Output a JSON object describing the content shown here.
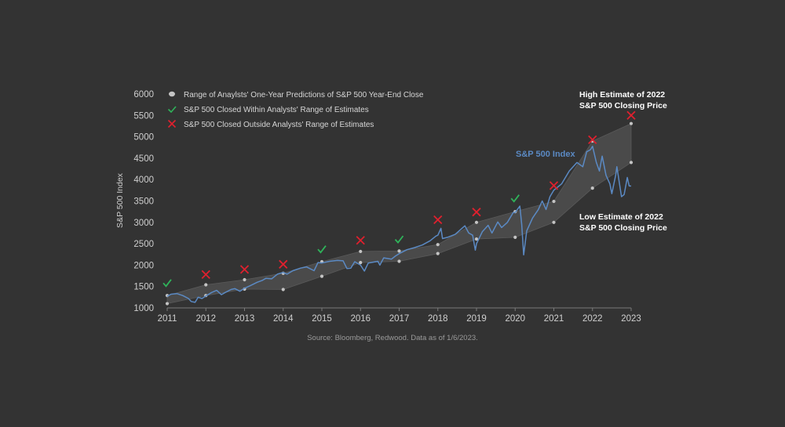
{
  "chart_data": {
    "type": "line",
    "ylabel": "S&P 500 Index",
    "source": "Source: Bloomberg, Redwood. Data as of 1/6/2023.",
    "ylim": [
      1000,
      6000
    ],
    "xlim": [
      2011,
      2023
    ],
    "x_ticks": [
      "2011",
      "2012",
      "2013",
      "2014",
      "2015",
      "2016",
      "2017",
      "2018",
      "2019",
      "2020",
      "2021",
      "2022",
      "2023"
    ],
    "y_ticks": [
      "1000",
      "1500",
      "2000",
      "2500",
      "3000",
      "3500",
      "4000",
      "4500",
      "5000",
      "5500",
      "6000"
    ],
    "legend": [
      {
        "marker": "dot",
        "label": "Range of Anaylsts' One-Year Predictions of S&P 500 Year-End Close"
      },
      {
        "marker": "check",
        "label": "S&P 500 Closed Within Analysts' Range of Estimates"
      },
      {
        "marker": "cross",
        "label": "S&P 500 Closed Outside Analysts' Range of Estimates"
      }
    ],
    "series_label": "S&P 500 Index",
    "colors": {
      "index": "#5b8ac4",
      "band": "#4a4a4a",
      "band_edge": "#5a5a5a",
      "dot": "#c4c4c4",
      "check": "#2fb35a",
      "cross": "#e0202e"
    },
    "annotations": {
      "high": [
        "High Estimate of 2022",
        "S&P 500 Closing Price"
      ],
      "low": [
        "Low Estimate of 2022",
        "S&P 500 Closing Price"
      ]
    },
    "estimate_range": [
      {
        "x": 2011,
        "low": 1100,
        "high": 1290
      },
      {
        "x": 2012,
        "low": 1290,
        "high": 1540
      },
      {
        "x": 2013,
        "low": 1440,
        "high": 1660
      },
      {
        "x": 2014,
        "low": 1430,
        "high": 1810
      },
      {
        "x": 2015,
        "low": 1740,
        "high": 2080
      },
      {
        "x": 2016,
        "low": 2060,
        "high": 2320
      },
      {
        "x": 2017,
        "low": 2090,
        "high": 2330
      },
      {
        "x": 2018,
        "low": 2270,
        "high": 2480
      },
      {
        "x": 2019,
        "low": 2610,
        "high": 3000
      },
      {
        "x": 2020,
        "low": 2650,
        "high": 3250
      },
      {
        "x": 2021,
        "low": 3000,
        "high": 3490
      },
      {
        "x": 2022,
        "low": 3800,
        "high": 4900
      },
      {
        "x": 2023,
        "low": 4400,
        "high": 5310
      }
    ],
    "outcomes": [
      {
        "x": 2011,
        "y": 1580,
        "result": "within"
      },
      {
        "x": 2012,
        "y": 1780,
        "result": "outside"
      },
      {
        "x": 2013,
        "y": 1900,
        "result": "outside"
      },
      {
        "x": 2014,
        "y": 2020,
        "result": "outside"
      },
      {
        "x": 2015,
        "y": 2370,
        "result": "within"
      },
      {
        "x": 2016,
        "y": 2580,
        "result": "outside"
      },
      {
        "x": 2017,
        "y": 2600,
        "result": "within"
      },
      {
        "x": 2018,
        "y": 3060,
        "result": "outside"
      },
      {
        "x": 2019,
        "y": 3240,
        "result": "outside"
      },
      {
        "x": 2020,
        "y": 3560,
        "result": "within"
      },
      {
        "x": 2021,
        "y": 3860,
        "result": "outside"
      },
      {
        "x": 2022,
        "y": 4930,
        "result": "outside"
      },
      {
        "x": 2023,
        "y": 5500,
        "result": "outside"
      }
    ],
    "sp500_index": [
      [
        2011.0,
        1271
      ],
      [
        2011.1,
        1320
      ],
      [
        2011.25,
        1335
      ],
      [
        2011.4,
        1290
      ],
      [
        2011.55,
        1220
      ],
      [
        2011.62,
        1150
      ],
      [
        2011.72,
        1130
      ],
      [
        2011.8,
        1250
      ],
      [
        2011.9,
        1220
      ],
      [
        2012.0,
        1280
      ],
      [
        2012.15,
        1360
      ],
      [
        2012.28,
        1410
      ],
      [
        2012.4,
        1310
      ],
      [
        2012.5,
        1360
      ],
      [
        2012.65,
        1430
      ],
      [
        2012.75,
        1450
      ],
      [
        2012.88,
        1390
      ],
      [
        2013.0,
        1460
      ],
      [
        2013.15,
        1520
      ],
      [
        2013.33,
        1600
      ],
      [
        2013.45,
        1640
      ],
      [
        2013.55,
        1690
      ],
      [
        2013.7,
        1680
      ],
      [
        2013.85,
        1790
      ],
      [
        2014.0,
        1830
      ],
      [
        2014.1,
        1790
      ],
      [
        2014.25,
        1870
      ],
      [
        2014.45,
        1930
      ],
      [
        2014.6,
        1960
      ],
      [
        2014.8,
        1870
      ],
      [
        2014.9,
        2060
      ],
      [
        2015.0,
        2050
      ],
      [
        2015.2,
        2090
      ],
      [
        2015.4,
        2110
      ],
      [
        2015.55,
        2100
      ],
      [
        2015.65,
        1920
      ],
      [
        2015.75,
        1930
      ],
      [
        2015.85,
        2080
      ],
      [
        2016.0,
        2000
      ],
      [
        2016.1,
        1860
      ],
      [
        2016.2,
        2050
      ],
      [
        2016.45,
        2090
      ],
      [
        2016.5,
        2000
      ],
      [
        2016.6,
        2170
      ],
      [
        2016.8,
        2140
      ],
      [
        2016.9,
        2210
      ],
      [
        2017.0,
        2270
      ],
      [
        2017.2,
        2360
      ],
      [
        2017.4,
        2410
      ],
      [
        2017.6,
        2470
      ],
      [
        2017.8,
        2570
      ],
      [
        2017.95,
        2680
      ],
      [
        2018.0,
        2700
      ],
      [
        2018.08,
        2860
      ],
      [
        2018.12,
        2620
      ],
      [
        2018.25,
        2650
      ],
      [
        2018.45,
        2720
      ],
      [
        2018.7,
        2920
      ],
      [
        2018.8,
        2750
      ],
      [
        2018.9,
        2700
      ],
      [
        2018.97,
        2350
      ],
      [
        2019.0,
        2500
      ],
      [
        2019.15,
        2780
      ],
      [
        2019.3,
        2930
      ],
      [
        2019.4,
        2750
      ],
      [
        2019.55,
        3010
      ],
      [
        2019.65,
        2880
      ],
      [
        2019.8,
        3000
      ],
      [
        2019.95,
        3230
      ],
      [
        2020.0,
        3230
      ],
      [
        2020.12,
        3380
      ],
      [
        2020.17,
        2950
      ],
      [
        2020.22,
        2240
      ],
      [
        2020.3,
        2800
      ],
      [
        2020.45,
        3100
      ],
      [
        2020.6,
        3300
      ],
      [
        2020.7,
        3500
      ],
      [
        2020.8,
        3300
      ],
      [
        2020.9,
        3600
      ],
      [
        2021.0,
        3750
      ],
      [
        2021.2,
        3900
      ],
      [
        2021.4,
        4200
      ],
      [
        2021.6,
        4400
      ],
      [
        2021.75,
        4300
      ],
      [
        2021.85,
        4650
      ],
      [
        2021.95,
        4700
      ],
      [
        2022.0,
        4780
      ],
      [
        2022.1,
        4400
      ],
      [
        2022.18,
        4200
      ],
      [
        2022.25,
        4550
      ],
      [
        2022.35,
        4100
      ],
      [
        2022.45,
        3900
      ],
      [
        2022.5,
        3670
      ],
      [
        2022.6,
        4100
      ],
      [
        2022.63,
        4300
      ],
      [
        2022.75,
        3600
      ],
      [
        2022.82,
        3650
      ],
      [
        2022.9,
        4050
      ],
      [
        2022.95,
        3850
      ],
      [
        2023.0,
        3850
      ]
    ]
  }
}
